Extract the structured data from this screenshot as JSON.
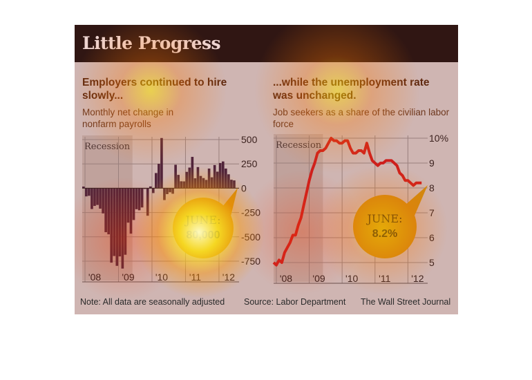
{
  "header": {
    "title": "Little Progress"
  },
  "left_panel": {
    "title": "Employers continued to hire slowly...",
    "subtitle": "Monthly net change in nonfarm payrolls"
  },
  "right_panel": {
    "title": "...while the unemployment rate was unchanged.",
    "subtitle": "Job seekers as a share of the civilian labor force"
  },
  "footer": {
    "note": "Note: All data are seasonally adjusted",
    "source": "Source: Labor Department",
    "publisher": "The Wall Street Journal"
  },
  "colors": {
    "header_bg": "#141414",
    "bar": "#3a2440",
    "line": "#c81e1e",
    "callout": "#c9960f"
  },
  "chart_data": [
    {
      "type": "bar",
      "title": "Employers continued to hire slowly...",
      "subtitle": "Monthly net change in nonfarm payrolls",
      "ylim": [
        -750,
        500
      ],
      "yticks": [
        500,
        250,
        0,
        -250,
        -500,
        -750
      ],
      "ytick_labels": [
        "500",
        "250",
        "0",
        "-250",
        "-500",
        "-750"
      ],
      "x_tick_labels": [
        "'08",
        "'09",
        "'10",
        "'11",
        "'12"
      ],
      "x_tick_positions": [
        2008.083,
        2009.083,
        2010.083,
        2011.083,
        2012.083
      ],
      "recession": {
        "label": "Recession",
        "start": 2008.0,
        "end": 2009.5
      },
      "annotation": {
        "label": "JUNE:",
        "value": "80,000"
      },
      "x_start": 2008.0,
      "x_step": 0.08333,
      "values": [
        17,
        -84,
        -78,
        -214,
        -182,
        -172,
        -210,
        -259,
        -452,
        -474,
        -765,
        -697,
        -798,
        -701,
        -826,
        -684,
        -354,
        -467,
        -327,
        -216,
        -227,
        -198,
        -6,
        -283,
        18,
        -50,
        156,
        251,
        516,
        -122,
        -61,
        -42,
        -57,
        241,
        137,
        71,
        70,
        168,
        212,
        322,
        102,
        217,
        126,
        104,
        85,
        202,
        112,
        238,
        170,
        259,
        275,
        202,
        143,
        87,
        80
      ]
    },
    {
      "type": "line",
      "title": "...while the unemployment rate was unchanged.",
      "subtitle": "Job seekers as a share of the civilian labor force",
      "ylim": [
        5,
        10
      ],
      "yticks": [
        10,
        9,
        8,
        7,
        6,
        5
      ],
      "ytick_labels": [
        "10%",
        "9",
        "8",
        "7",
        "6",
        "5"
      ],
      "x_tick_labels": [
        "'08",
        "'09",
        "'10",
        "'11",
        "'12"
      ],
      "x_tick_positions": [
        2008.083,
        2009.083,
        2010.083,
        2011.083,
        2012.083
      ],
      "recession": {
        "label": "Recession",
        "start": 2008.0,
        "end": 2009.5
      },
      "annotation": {
        "label": "JUNE:",
        "value": "8.2%"
      },
      "x_start": 2008.0,
      "x_step": 0.08333,
      "values": [
        5.0,
        4.9,
        5.1,
        5.0,
        5.4,
        5.6,
        5.8,
        6.1,
        6.1,
        6.5,
        6.8,
        7.3,
        7.8,
        8.3,
        8.7,
        9.0,
        9.4,
        9.5,
        9.5,
        9.6,
        9.8,
        10.0,
        9.9,
        9.9,
        9.8,
        9.8,
        9.9,
        9.9,
        9.6,
        9.4,
        9.4,
        9.5,
        9.5,
        9.4,
        9.8,
        9.4,
        9.1,
        9.0,
        8.9,
        9.0,
        9.0,
        9.1,
        9.1,
        9.1,
        9.0,
        8.9,
        8.6,
        8.5,
        8.3,
        8.3,
        8.2,
        8.1,
        8.2,
        8.2,
        8.2
      ]
    }
  ]
}
